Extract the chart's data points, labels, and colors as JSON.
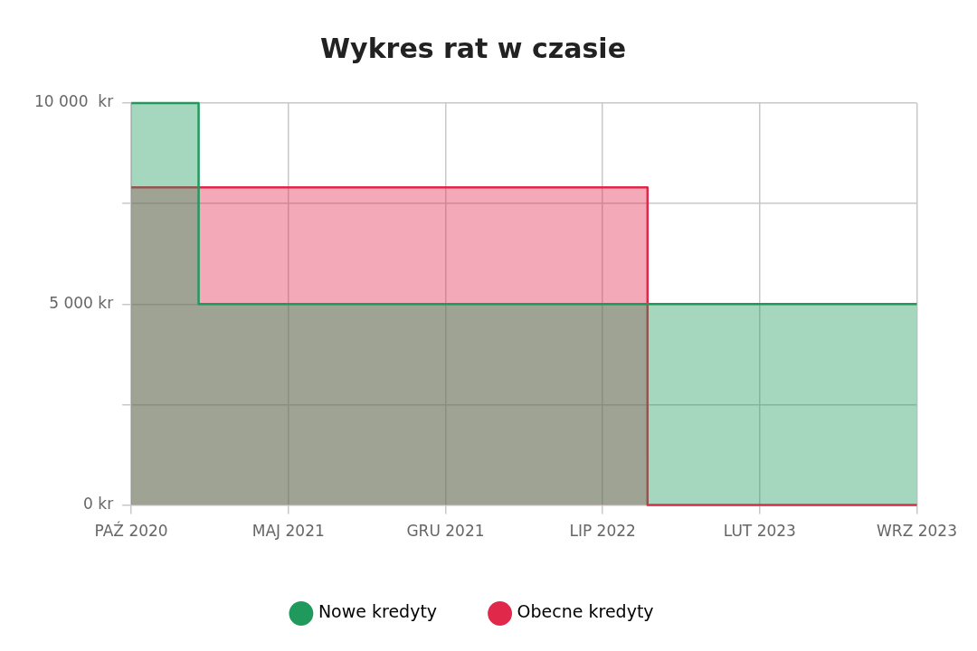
{
  "chart_data": {
    "type": "area",
    "title": "Wykres rat w czasie",
    "series": [
      {
        "name": "Nowe kredyty",
        "color": "#1f9a5c",
        "x": [
          "2020-10",
          "2021-01",
          "2021-01",
          "2023-09"
        ],
        "values": [
          10000,
          10000,
          5000,
          5000
        ]
      },
      {
        "name": "Obecne kredyty",
        "color": "#e0284a",
        "x": [
          "2020-10",
          "2022-09",
          "2022-09",
          "2023-09"
        ],
        "values": [
          7900,
          7900,
          0,
          0
        ]
      }
    ],
    "xlim": [
      "2020-10",
      "2023-09"
    ],
    "xticks": [
      {
        "value": "2020-10",
        "label": "PAŹ 2020"
      },
      {
        "value": "2021-05",
        "label": "MAJ 2021"
      },
      {
        "value": "2021-12",
        "label": "GRU 2021"
      },
      {
        "value": "2022-07",
        "label": "LIP 2022"
      },
      {
        "value": "2023-02",
        "label": "LUT 2023"
      },
      {
        "value": "2023-09",
        "label": "WRZ 2023"
      }
    ],
    "ylim": [
      0,
      10000
    ],
    "yticks": [
      {
        "value": 0,
        "label": "0 kr"
      },
      {
        "value": 2500,
        "label": null
      },
      {
        "value": 5000,
        "label": "5 000 kr"
      },
      {
        "value": 7500,
        "label": null
      },
      {
        "value": 10000,
        "label": "10 000  kr"
      }
    ],
    "grid": true,
    "legend": "bottom"
  }
}
